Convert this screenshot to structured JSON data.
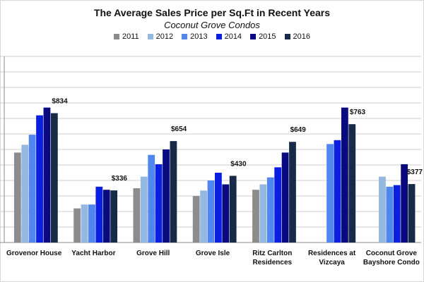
{
  "chart_data": {
    "type": "bar",
    "title": "The Average Sales Price per Sq.Ft in Recent Years",
    "subtitle": "Coconut Grove Condos",
    "xlabel": "",
    "ylabel": "",
    "ylim": [
      0,
      1200
    ],
    "grid": true,
    "legend_position": "top",
    "categories": [
      "Grovenor House",
      "Yacht Harbor",
      "Grove Hill",
      "Grove Isle",
      "Ritz Carlton Residences",
      "Residences at Vizcaya",
      "Coconut Grove Bayshore Condo"
    ],
    "category_lines": [
      [
        "Grovenor House"
      ],
      [
        "Yacht Harbor"
      ],
      [
        "Grove Hill"
      ],
      [
        "Grove Isle"
      ],
      [
        "Ritz Carlton",
        "Residences"
      ],
      [
        "Residences at",
        "Vizcaya"
      ],
      [
        "Coconut Grove",
        "Bayshore Condo"
      ]
    ],
    "series": [
      {
        "name": "2011",
        "color": "#8c8c8c",
        "values": [
          580,
          220,
          350,
          300,
          340,
          null,
          null
        ]
      },
      {
        "name": "2012",
        "color": "#94b8e0",
        "values": [
          630,
          245,
          425,
          335,
          375,
          null,
          425
        ]
      },
      {
        "name": "2013",
        "color": "#4f86f0",
        "values": [
          695,
          245,
          565,
          400,
          420,
          635,
          360
        ]
      },
      {
        "name": "2014",
        "color": "#0a1fe0",
        "values": [
          820,
          360,
          505,
          450,
          485,
          660,
          370
        ]
      },
      {
        "name": "2015",
        "color": "#0a0a80",
        "values": [
          870,
          340,
          600,
          375,
          580,
          870,
          505
        ]
      },
      {
        "name": "2016",
        "color": "#172a48",
        "values": [
          834,
          336,
          654,
          430,
          649,
          763,
          377
        ]
      }
    ],
    "annotations": [
      "$834",
      "$336",
      "$654",
      "$430",
      "$649",
      "$763",
      "$377"
    ]
  }
}
